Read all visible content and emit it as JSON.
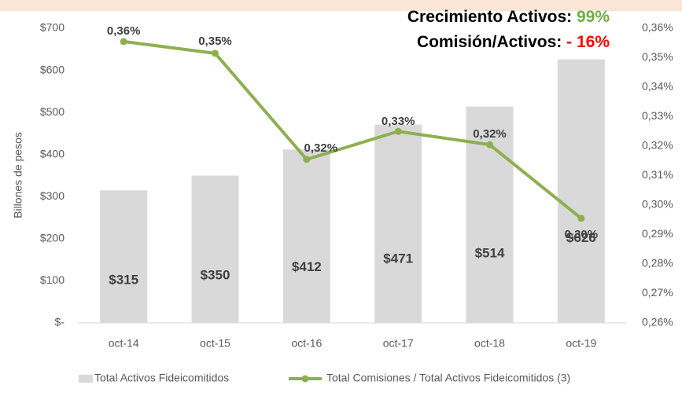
{
  "chart_data": {
    "type": "bar-line",
    "headline": [
      {
        "label": "Crecimiento Activos: ",
        "value": "99%",
        "color": "#70ad47"
      },
      {
        "label": "Comisión/Activos: ",
        "value": "- 16%",
        "color": "#ff0000"
      }
    ],
    "y_label": "Billones de pesos",
    "categories": [
      "oct-14",
      "oct-15",
      "oct-16",
      "oct-17",
      "oct-18",
      "oct-19"
    ],
    "series": [
      {
        "name": "Total Activos Fideicomitidos",
        "type": "bar",
        "color": "#d9d9d9",
        "values": [
          315,
          350,
          412,
          471,
          514,
          626
        ],
        "value_labels": [
          "$315",
          "$350",
          "$412",
          "$471",
          "$514",
          "$626"
        ]
      },
      {
        "name": "Total Comisiones / Total Activos Fideicomitidos (3)",
        "type": "line",
        "axis": "y2",
        "color": "#8db04f",
        "values": [
          0.3555,
          0.3515,
          0.3155,
          0.325,
          0.3205,
          0.2955
        ],
        "value_labels": [
          "0,36%",
          "0,35%",
          "0,32%",
          "0,33%",
          "0,32%",
          "0,30%"
        ]
      }
    ],
    "ylim": [
      0,
      700
    ],
    "yticks": [
      {
        "value": 0,
        "label": "$-"
      },
      {
        "value": 100,
        "label": "$100"
      },
      {
        "value": 200,
        "label": "$200"
      },
      {
        "value": 300,
        "label": "$300"
      },
      {
        "value": 400,
        "label": "$400"
      },
      {
        "value": 500,
        "label": "$500"
      },
      {
        "value": 600,
        "label": "$600"
      },
      {
        "value": 700,
        "label": "$700"
      }
    ],
    "y2lim": [
      0.26,
      0.36
    ],
    "y2ticks": [
      {
        "value": 0.26,
        "label": "0,26%"
      },
      {
        "value": 0.27,
        "label": "0,27%"
      },
      {
        "value": 0.28,
        "label": "0,28%"
      },
      {
        "value": 0.29,
        "label": "0,29%"
      },
      {
        "value": 0.3,
        "label": "0,30%"
      },
      {
        "value": 0.31,
        "label": "0,31%"
      },
      {
        "value": 0.32,
        "label": "0,32%"
      },
      {
        "value": 0.33,
        "label": "0,33%"
      },
      {
        "value": 0.34,
        "label": "0,34%"
      },
      {
        "value": 0.35,
        "label": "0,35%"
      },
      {
        "value": 0.36,
        "label": "0,36%"
      }
    ]
  }
}
